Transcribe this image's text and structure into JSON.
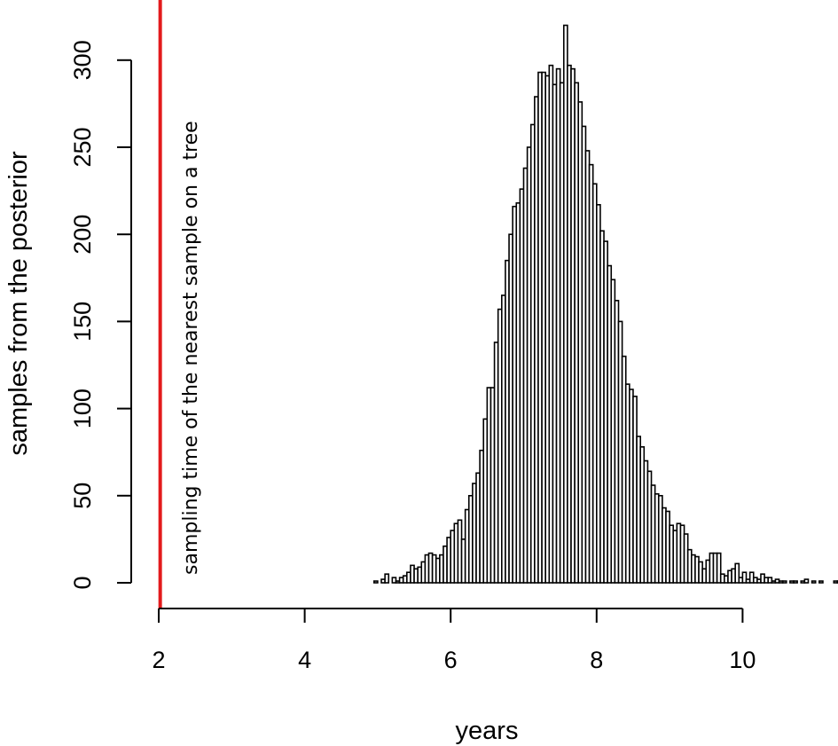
{
  "chart_data": {
    "type": "bar",
    "title": "",
    "xlabel": "years",
    "ylabel": "samples from the posterior",
    "xlim": [
      2,
      11.3
    ],
    "ylim": [
      0,
      320
    ],
    "x_ticks": [
      "2",
      "4",
      "6",
      "8",
      "10"
    ],
    "y_ticks": [
      "0",
      "50",
      "100",
      "150",
      "200",
      "250",
      "300"
    ],
    "bin_width": 0.05,
    "bin_start": 4.95,
    "values": [
      1,
      0,
      2,
      5,
      0,
      3,
      1,
      3,
      4,
      6,
      10,
      8,
      9,
      12,
      16,
      17,
      16,
      14,
      16,
      21,
      26,
      30,
      34,
      36,
      25,
      42,
      50,
      57,
      63,
      76,
      94,
      112,
      112,
      138,
      157,
      165,
      185,
      200,
      216,
      218,
      226,
      238,
      250,
      263,
      279,
      293,
      293,
      291,
      297,
      286,
      295,
      287,
      320,
      297,
      295,
      287,
      276,
      262,
      248,
      240,
      229,
      217,
      202,
      196,
      182,
      174,
      162,
      150,
      130,
      114,
      111,
      107,
      84,
      78,
      70,
      64,
      56,
      51,
      50,
      43,
      41,
      33,
      30,
      34,
      33,
      28,
      19,
      16,
      15,
      12,
      8,
      13,
      17,
      17,
      17,
      5,
      4,
      7,
      8,
      11,
      3,
      6,
      2,
      6,
      3,
      2,
      5,
      3,
      3,
      1,
      2,
      1,
      1,
      0,
      1,
      1,
      0,
      1,
      2,
      0,
      1,
      0,
      1,
      0,
      0,
      0,
      1,
      1,
      1,
      1
    ],
    "reference_line": {
      "x": 2.02,
      "label": "sampling time of the nearest sample on a tree",
      "color": "#e31a1c"
    },
    "bar_fill": "#ffffff",
    "bar_stroke": "#000000",
    "grid": false
  }
}
